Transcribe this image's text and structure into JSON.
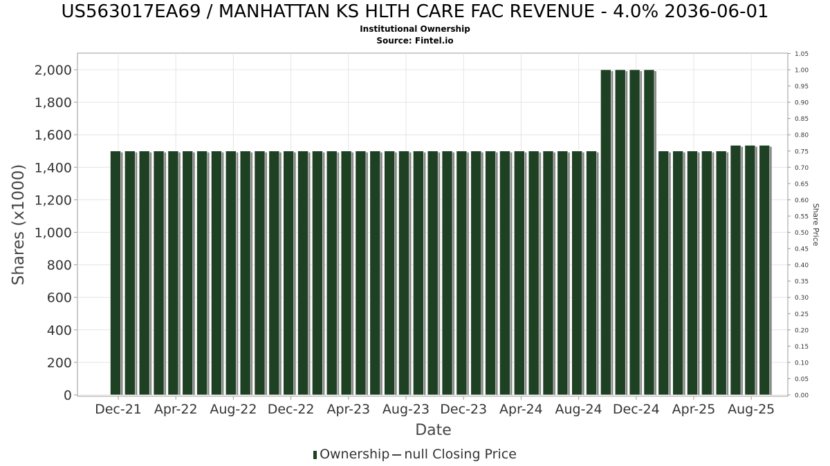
{
  "header": {
    "title": "US563017EA69 / MANHATTAN KS HLTH CARE FAC REVENUE - 4.0% 2036-06-01",
    "subtitle": "Institutional Ownership",
    "source": "Source: Fintel.io"
  },
  "legend": {
    "ownership": "Ownership",
    "closing_price": "null Closing Price"
  },
  "colors": {
    "bar": "#1e4023",
    "bar_shadow": "#888888",
    "grid": "#e4e4e4"
  },
  "chart_data": {
    "type": "bar",
    "xlabel": "Date",
    "ylabel": "Shares (x1000)",
    "y2label": "Share Price",
    "ylim": [
      0,
      2100
    ],
    "y2lim": [
      0,
      1.05
    ],
    "yticks": [
      "0",
      "200",
      "400",
      "600",
      "800",
      "1,000",
      "1,200",
      "1,400",
      "1,600",
      "1,800",
      "2,000"
    ],
    "yticks_values": [
      0,
      200,
      400,
      600,
      800,
      1000,
      1200,
      1400,
      1600,
      1800,
      2000
    ],
    "y2ticks": [
      "0.00",
      "0.05",
      "0.10",
      "0.15",
      "0.20",
      "0.25",
      "0.30",
      "0.35",
      "0.40",
      "0.45",
      "0.50",
      "0.55",
      "0.60",
      "0.65",
      "0.70",
      "0.75",
      "0.80",
      "0.85",
      "0.90",
      "0.95",
      "1.00",
      "1.05"
    ],
    "xticks": [
      "Dec-21",
      "Apr-22",
      "Aug-22",
      "Dec-22",
      "Apr-23",
      "Aug-23",
      "Dec-23",
      "Apr-24",
      "Aug-24",
      "Dec-24",
      "Apr-25",
      "Aug-25"
    ],
    "grid": true,
    "legend_position": "bottom",
    "series": [
      {
        "name": "Ownership",
        "values": [
          1500,
          1500,
          1500,
          1500,
          1500,
          1500,
          1500,
          1500,
          1500,
          1500,
          1500,
          1500,
          1500,
          1500,
          1500,
          1500,
          1500,
          1500,
          1500,
          1500,
          1500,
          1500,
          1500,
          1500,
          1500,
          1500,
          1500,
          1500,
          1500,
          1500,
          1500,
          1500,
          1500,
          1500,
          2000,
          2000,
          2000,
          2000,
          1500,
          1500,
          1500,
          1500,
          1500,
          1535,
          1535,
          1535
        ]
      }
    ]
  }
}
